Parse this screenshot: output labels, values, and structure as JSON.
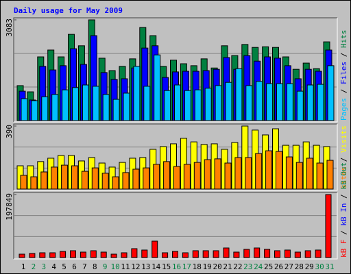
{
  "chart_data": {
    "type": "bar",
    "title": "Daily usage for May 2009",
    "title_color": "#0000ff",
    "categories": [
      "1",
      "2",
      "3",
      "4",
      "5",
      "6",
      "7",
      "8",
      "9",
      "10",
      "11",
      "12",
      "13",
      "14",
      "15",
      "16",
      "17",
      "18",
      "19",
      "20",
      "21",
      "22",
      "23",
      "24",
      "25",
      "26",
      "27",
      "28",
      "29",
      "30",
      "31"
    ],
    "category_colors": [
      "#000000",
      "#008040",
      "#008040",
      "#000000",
      "#000000",
      "#000000",
      "#000000",
      "#000000",
      "#008040",
      "#008040",
      "#000000",
      "#000000",
      "#000000",
      "#000000",
      "#000000",
      "#008040",
      "#008040",
      "#000000",
      "#000000",
      "#000000",
      "#000000",
      "#000000",
      "#008040",
      "#008040",
      "#000000",
      "#000000",
      "#000000",
      "#000000",
      "#000000",
      "#008040",
      "#008040"
    ],
    "panels": [
      {
        "ylim": [
          0,
          3083
        ],
        "yticks": [
          3083
        ],
        "series": [
          {
            "name": "Hits",
            "color": "#008040",
            "values": [
              1070,
              880,
              1950,
              2160,
              1950,
              2640,
              2290,
              3083,
              1910,
              1530,
              1660,
              1890,
              2850,
              2600,
              1660,
              1850,
              1740,
              1680,
              1890,
              1610,
              2290,
              1990,
              2330,
              2240,
              2260,
              2240,
              1950,
              1570,
              1760,
              1590,
              2410
            ]
          },
          {
            "name": "Files",
            "color": "#0000ff",
            "values": [
              900,
              630,
              1660,
              1550,
              1680,
              2200,
              1720,
              2600,
              1470,
              1260,
              1280,
              1610,
              2220,
              2290,
              1320,
              1490,
              1510,
              1510,
              1530,
              1570,
              1930,
              1570,
              1990,
              1820,
              1950,
              1910,
              1680,
              1280,
              1570,
              1510,
              2160
            ]
          },
          {
            "name": "Pages",
            "color": "#00c0ff",
            "values": [
              670,
              610,
              730,
              800,
              940,
              1010,
              1090,
              1050,
              800,
              650,
              840,
              1660,
              1050,
              2010,
              920,
              1090,
              920,
              940,
              990,
              1070,
              1170,
              1590,
              1070,
              1200,
              1130,
              1130,
              1130,
              900,
              1090,
              1110,
              1680
            ]
          }
        ]
      },
      {
        "ylim": [
          0,
          390
        ],
        "yticks": [
          390
        ],
        "series": [
          {
            "name": "Visits",
            "color": "#ffff00",
            "values": [
              144,
              144,
              170,
              191,
              208,
              208,
              174,
              195,
              161,
              136,
              165,
              191,
              195,
              246,
              263,
              280,
              314,
              292,
              276,
              280,
              246,
              288,
              390,
              365,
              335,
              373,
              271,
              271,
              292,
              271,
              263
            ]
          },
          {
            "name": "Sites",
            "color": "#ff8000",
            "values": [
              85,
              76,
              106,
              136,
              148,
              144,
              110,
              131,
              98,
              76,
              102,
              123,
              131,
              153,
              170,
              140,
              153,
              165,
              182,
              187,
              161,
              195,
              195,
              220,
              237,
              233,
              199,
              165,
              191,
              161,
              178
            ]
          }
        ]
      },
      {
        "ylim": [
          0,
          197849
        ],
        "yticks": [
          197849
        ],
        "series": [
          {
            "name": "kB Out",
            "color": "#008040"
          },
          {
            "name": "kB In",
            "color": "#0000ff"
          },
          {
            "name": "kB F",
            "color": "#ff0000",
            "values": [
              10750,
              12900,
              15050,
              15050,
              19350,
              21500,
              17200,
              21500,
              17200,
              10750,
              15050,
              27960,
              23660,
              51610,
              15050,
              19350,
              15050,
              21500,
              21500,
              21500,
              30110,
              17200,
              25810,
              30110,
              25810,
              21500,
              23660,
              17200,
              21500,
              23660,
              197849
            ]
          }
        ]
      }
    ]
  }
}
